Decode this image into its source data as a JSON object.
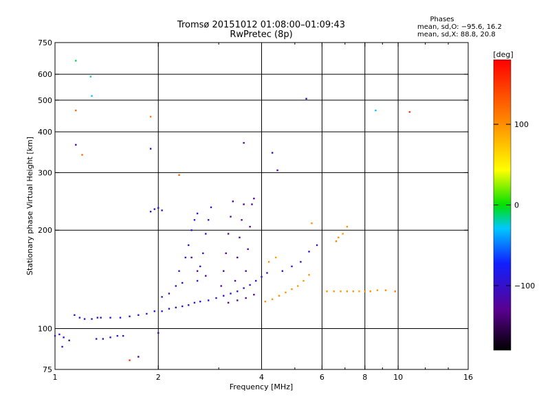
{
  "chart_data": {
    "type": "scatter",
    "title": "Tromsø 20151012 01:08:00–01:09:43",
    "subtitle": "RwPretec (8p)",
    "xlabel": "Frequency [MHz]",
    "ylabel": "Stationary phase Virtual Height [km]",
    "x_scale": "log",
    "y_scale": "log",
    "xlim": [
      1,
      16
    ],
    "ylim": [
      75,
      750
    ],
    "x_ticks": [
      1,
      2,
      4,
      6,
      8,
      10,
      16
    ],
    "x_tick_labels": [
      "1",
      "2",
      "4",
      "6",
      "8",
      "10",
      "16"
    ],
    "y_ticks": [
      75,
      100,
      200,
      300,
      400,
      500,
      600,
      750
    ],
    "y_tick_labels": [
      "75",
      "100",
      "200",
      "300",
      "400",
      "500",
      "600",
      "750"
    ],
    "grid_x": [
      2,
      4,
      6,
      8,
      10
    ],
    "grid_y": [
      100,
      200,
      300,
      400,
      500,
      600
    ],
    "grid": true,
    "stats": {
      "title": "Phases",
      "line_o": "mean, sd,O: −95.6, 16.2",
      "line_x": "mean, sd,X:  88.8, 20.8"
    },
    "colorbar": {
      "unit": "[deg]",
      "range": [
        -180,
        180
      ],
      "ticks": [
        -100,
        0,
        100
      ],
      "tick_labels": [
        "−100",
        "0",
        "100"
      ],
      "colormap": "rainbow (black–purple–blue–cyan–green–yellow–orange–red)"
    },
    "series": [
      {
        "points": [
          [
            1.0,
            95,
            -90
          ],
          [
            1.03,
            96,
            -100
          ],
          [
            1.06,
            94,
            -95
          ],
          [
            1.1,
            92,
            -105
          ],
          [
            1.14,
            110,
            -100
          ],
          [
            1.18,
            108,
            -95
          ],
          [
            1.22,
            107,
            -100
          ],
          [
            1.28,
            107,
            -98
          ],
          [
            1.33,
            108,
            -95
          ],
          [
            1.36,
            108,
            -100
          ],
          [
            1.32,
            93,
            -90
          ],
          [
            1.38,
            93,
            -95
          ],
          [
            1.45,
            94,
            -100
          ],
          [
            1.52,
            95,
            -92
          ],
          [
            1.58,
            95,
            -96
          ],
          [
            1.45,
            108,
            -100
          ],
          [
            1.55,
            108,
            -95
          ],
          [
            1.65,
            109,
            -100
          ],
          [
            1.75,
            110,
            -98
          ],
          [
            1.85,
            111,
            -95
          ],
          [
            1.95,
            113,
            -90
          ],
          [
            2.05,
            113,
            -92
          ],
          [
            2.15,
            115,
            -95
          ],
          [
            2.25,
            116,
            -100
          ],
          [
            2.35,
            117,
            -95
          ],
          [
            2.45,
            118,
            -98
          ],
          [
            2.55,
            120,
            -95
          ],
          [
            2.65,
            121,
            -92
          ],
          [
            2.8,
            122,
            -95
          ],
          [
            2.95,
            124,
            -90
          ],
          [
            3.1,
            126,
            -92
          ],
          [
            3.25,
            128,
            -95
          ],
          [
            3.4,
            130,
            -98
          ],
          [
            3.55,
            133,
            -95
          ],
          [
            3.7,
            136,
            -92
          ],
          [
            3.85,
            140,
            -95
          ],
          [
            4.0,
            144,
            -90
          ],
          [
            4.15,
            148,
            -92
          ],
          [
            2.05,
            125,
            -95
          ],
          [
            2.15,
            128,
            -100
          ],
          [
            2.25,
            135,
            -92
          ],
          [
            2.35,
            138,
            -95
          ],
          [
            1.9,
            228,
            -100
          ],
          [
            1.95,
            232,
            -95
          ],
          [
            2.0,
            234,
            -98
          ],
          [
            2.05,
            230,
            -100
          ],
          [
            2.3,
            150,
            -98
          ],
          [
            2.4,
            165,
            -95
          ],
          [
            2.45,
            180,
            -100
          ],
          [
            2.5,
            200,
            -92
          ],
          [
            2.55,
            215,
            -95
          ],
          [
            2.6,
            225,
            -90
          ],
          [
            2.6,
            140,
            -95
          ],
          [
            2.65,
            155,
            -92
          ],
          [
            2.7,
            170,
            -100
          ],
          [
            2.75,
            195,
            -95
          ],
          [
            2.8,
            215,
            -98
          ],
          [
            2.85,
            235,
            -95
          ],
          [
            2.5,
            165,
            -130
          ],
          [
            2.6,
            150,
            -128
          ],
          [
            2.75,
            145,
            -125
          ],
          [
            3.05,
            135,
            -120
          ],
          [
            3.1,
            150,
            -125
          ],
          [
            3.15,
            170,
            -130
          ],
          [
            3.2,
            195,
            -128
          ],
          [
            3.25,
            220,
            -125
          ],
          [
            3.3,
            245,
            -120
          ],
          [
            3.35,
            140,
            -125
          ],
          [
            3.4,
            165,
            -130
          ],
          [
            3.45,
            190,
            -128
          ],
          [
            3.5,
            215,
            -125
          ],
          [
            3.55,
            240,
            -130
          ],
          [
            3.6,
            150,
            -125
          ],
          [
            3.65,
            175,
            -120
          ],
          [
            3.7,
            205,
            -125
          ],
          [
            3.75,
            240,
            -128
          ],
          [
            3.8,
            250,
            -125
          ],
          [
            3.2,
            120,
            -130
          ],
          [
            3.4,
            122,
            -128
          ],
          [
            3.6,
            124,
            -125
          ],
          [
            3.8,
            127,
            -130
          ],
          [
            3.55,
            370,
            -125
          ],
          [
            4.3,
            345,
            -100
          ],
          [
            4.45,
            305,
            -120
          ],
          [
            4.1,
            121,
            100
          ],
          [
            4.3,
            123,
            95
          ],
          [
            4.5,
            126,
            100
          ],
          [
            4.7,
            129,
            98
          ],
          [
            4.9,
            132,
            100
          ],
          [
            5.1,
            135,
            95
          ],
          [
            5.3,
            140,
            100
          ],
          [
            5.5,
            146,
            98
          ],
          [
            4.6,
            150,
            -95
          ],
          [
            4.9,
            155,
            -92
          ],
          [
            5.2,
            160,
            -95
          ],
          [
            5.5,
            172,
            -100
          ],
          [
            5.8,
            180,
            -98
          ],
          [
            4.2,
            160,
            100
          ],
          [
            4.4,
            165,
            95
          ],
          [
            5.6,
            210,
            100
          ],
          [
            6.2,
            130,
            100
          ],
          [
            6.5,
            130,
            95
          ],
          [
            6.8,
            130,
            98
          ],
          [
            7.1,
            130,
            100
          ],
          [
            7.4,
            130,
            95
          ],
          [
            7.7,
            130,
            90
          ],
          [
            8.0,
            130,
            95
          ],
          [
            8.3,
            130,
            100
          ],
          [
            8.7,
            131,
            95
          ],
          [
            9.2,
            131,
            100
          ],
          [
            9.8,
            130,
            110
          ],
          [
            6.7,
            190,
            100
          ],
          [
            6.9,
            195,
            95
          ],
          [
            7.1,
            205,
            100
          ],
          [
            6.6,
            185,
            110
          ],
          [
            1.15,
            660,
            -10
          ],
          [
            1.27,
            590,
            -20
          ],
          [
            1.28,
            515,
            -30
          ],
          [
            1.15,
            465,
            120
          ],
          [
            1.9,
            445,
            110
          ],
          [
            1.15,
            365,
            -110
          ],
          [
            1.9,
            355,
            -110
          ],
          [
            1.2,
            340,
            120
          ],
          [
            2.3,
            295,
            130
          ],
          [
            5.4,
            505,
            -100
          ],
          [
            8.6,
            465,
            -30
          ],
          [
            10.8,
            460,
            150
          ],
          [
            1.65,
            80,
            150
          ],
          [
            1.75,
            82,
            -120
          ],
          [
            2.0,
            97,
            -110
          ],
          [
            1.05,
            88,
            -100
          ]
        ]
      }
    ]
  }
}
